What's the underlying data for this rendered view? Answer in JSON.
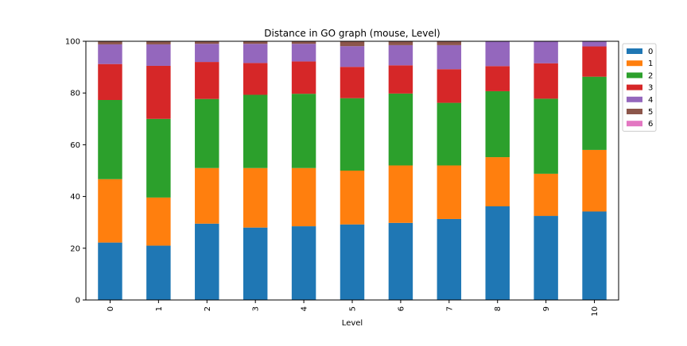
{
  "chart_data": {
    "type": "bar",
    "stacked": true,
    "title": "Distance in GO graph (mouse, Level)",
    "xlabel": "Level",
    "ylabel": "",
    "ylim": [
      0,
      100
    ],
    "yticks": [
      0,
      20,
      40,
      60,
      80,
      100
    ],
    "categories": [
      "0",
      "1",
      "2",
      "3",
      "4",
      "5",
      "6",
      "7",
      "8",
      "9",
      "10"
    ],
    "legend_placement": "upper-right-outside",
    "grid": false,
    "series": [
      {
        "name": "0",
        "color": "#1f77b4",
        "values": [
          22.2,
          21.0,
          29.5,
          28.0,
          28.5,
          29.2,
          29.8,
          31.3,
          36.2,
          32.5,
          34.2
        ]
      },
      {
        "name": "1",
        "color": "#ff7f0e",
        "values": [
          24.5,
          18.6,
          21.5,
          23.0,
          22.5,
          20.8,
          22.2,
          20.7,
          19.0,
          16.3,
          23.8
        ]
      },
      {
        "name": "2",
        "color": "#2ca02c",
        "values": [
          30.6,
          30.4,
          26.7,
          28.3,
          28.7,
          28.0,
          27.8,
          24.2,
          25.5,
          29.0,
          28.3
        ]
      },
      {
        "name": "3",
        "color": "#d62728",
        "values": [
          13.9,
          20.5,
          14.3,
          12.3,
          12.5,
          12.1,
          10.9,
          13.0,
          9.7,
          13.7,
          11.7
        ]
      },
      {
        "name": "4",
        "color": "#9467bd",
        "values": [
          7.6,
          8.3,
          7.0,
          7.4,
          6.8,
          8.0,
          7.8,
          9.3,
          9.6,
          8.5,
          2.0
        ]
      },
      {
        "name": "5",
        "color": "#8c564b",
        "values": [
          1.2,
          1.2,
          1.0,
          1.0,
          1.0,
          1.9,
          1.5,
          1.5,
          0.0,
          0.0,
          0.0
        ]
      },
      {
        "name": "6",
        "color": "#e377c2",
        "values": [
          0.0,
          0.0,
          0.0,
          0.0,
          0.0,
          0.0,
          0.0,
          0.0,
          0.0,
          0.0,
          0.0
        ]
      }
    ]
  }
}
